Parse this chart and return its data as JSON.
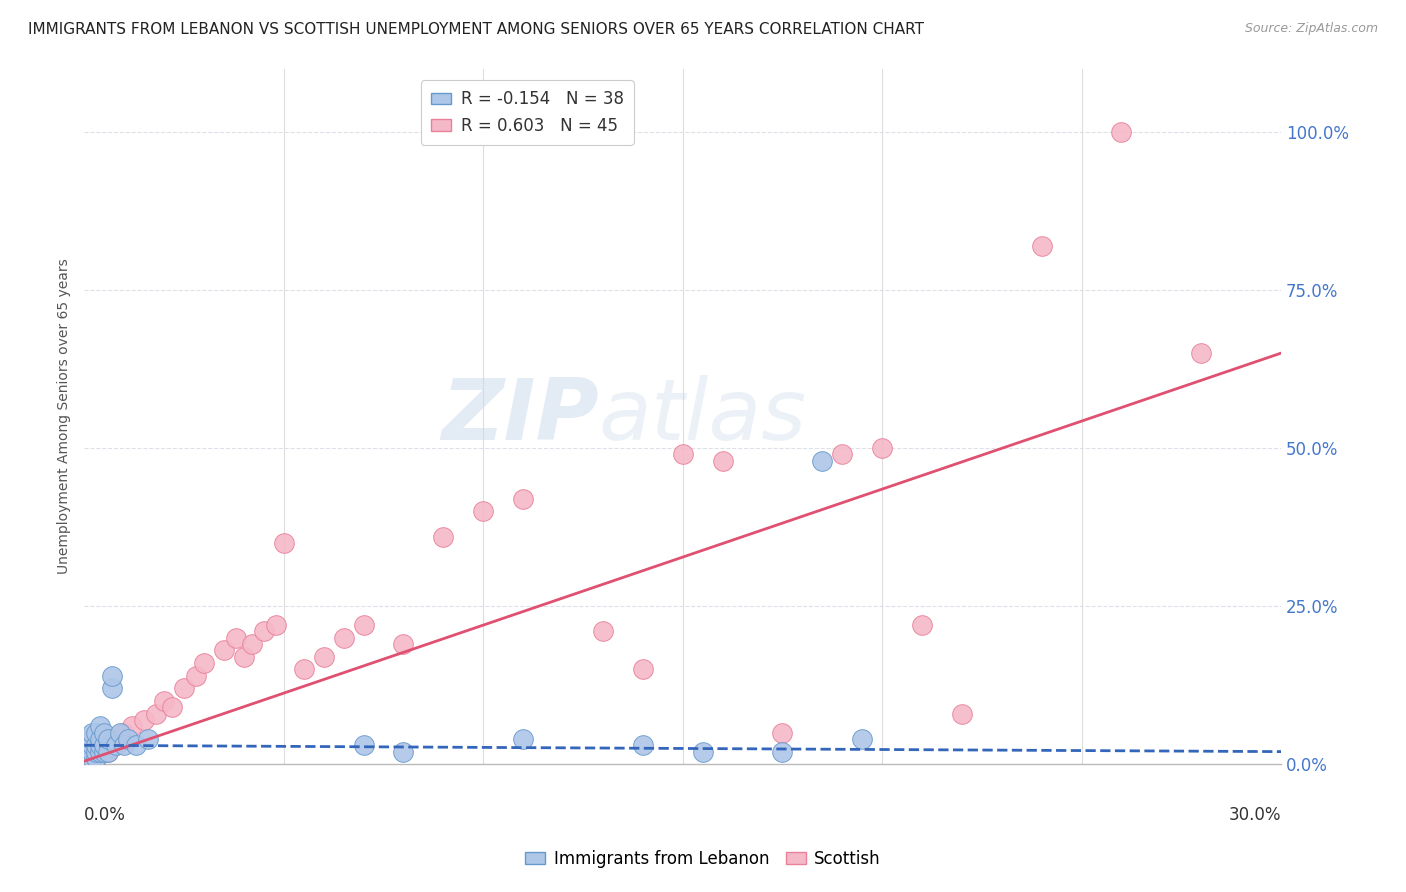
{
  "title": "IMMIGRANTS FROM LEBANON VS SCOTTISH UNEMPLOYMENT AMONG SENIORS OVER 65 YEARS CORRELATION CHART",
  "source": "Source: ZipAtlas.com",
  "ylabel": "Unemployment Among Seniors over 65 years",
  "ytick_values": [
    0.0,
    0.25,
    0.5,
    0.75,
    1.0
  ],
  "ytick_labels_right": [
    "0.0%",
    "25.0%",
    "50.0%",
    "75.0%",
    "100.0%"
  ],
  "xmin": 0.0,
  "xmax": 0.3,
  "ymin": 0.0,
  "ymax": 1.1,
  "legend_blue_R": "-0.154",
  "legend_blue_N": "38",
  "legend_pink_R": "0.603",
  "legend_pink_N": "45",
  "blue_scatter_color": "#aec6e8",
  "blue_edge_color": "#6699cc",
  "blue_line_color": "#3366bb",
  "pink_scatter_color": "#f5b8c8",
  "pink_edge_color": "#e8809a",
  "pink_line_color": "#e05070",
  "blue_x": [
    0.001,
    0.001,
    0.001,
    0.001,
    0.002,
    0.002,
    0.002,
    0.002,
    0.002,
    0.003,
    0.003,
    0.003,
    0.003,
    0.004,
    0.004,
    0.004,
    0.004,
    0.005,
    0.005,
    0.005,
    0.006,
    0.006,
    0.007,
    0.007,
    0.008,
    0.009,
    0.01,
    0.011,
    0.013,
    0.016,
    0.07,
    0.08,
    0.11,
    0.14,
    0.155,
    0.175,
    0.185,
    0.195
  ],
  "blue_y": [
    0.01,
    0.02,
    0.03,
    0.04,
    0.01,
    0.02,
    0.03,
    0.04,
    0.05,
    0.01,
    0.02,
    0.03,
    0.05,
    0.02,
    0.03,
    0.04,
    0.06,
    0.02,
    0.03,
    0.05,
    0.02,
    0.04,
    0.12,
    0.14,
    0.03,
    0.05,
    0.03,
    0.04,
    0.03,
    0.04,
    0.03,
    0.02,
    0.04,
    0.03,
    0.02,
    0.02,
    0.48,
    0.04
  ],
  "pink_x": [
    0.001,
    0.002,
    0.003,
    0.004,
    0.005,
    0.006,
    0.007,
    0.008,
    0.009,
    0.01,
    0.012,
    0.015,
    0.018,
    0.02,
    0.022,
    0.025,
    0.028,
    0.03,
    0.035,
    0.038,
    0.04,
    0.042,
    0.045,
    0.048,
    0.05,
    0.055,
    0.06,
    0.065,
    0.07,
    0.08,
    0.09,
    0.1,
    0.11,
    0.13,
    0.14,
    0.15,
    0.16,
    0.175,
    0.19,
    0.2,
    0.21,
    0.22,
    0.24,
    0.26,
    0.28
  ],
  "pink_y": [
    0.01,
    0.02,
    0.01,
    0.03,
    0.02,
    0.02,
    0.03,
    0.03,
    0.04,
    0.05,
    0.06,
    0.07,
    0.08,
    0.1,
    0.09,
    0.12,
    0.14,
    0.16,
    0.18,
    0.2,
    0.17,
    0.19,
    0.21,
    0.22,
    0.35,
    0.15,
    0.17,
    0.2,
    0.22,
    0.19,
    0.36,
    0.4,
    0.42,
    0.21,
    0.15,
    0.49,
    0.48,
    0.05,
    0.49,
    0.5,
    0.22,
    0.08,
    0.82,
    1.0,
    0.65
  ],
  "watermark_zip": "ZIP",
  "watermark_atlas": "atlas",
  "background_color": "#ffffff",
  "grid_color": "#dde0e8",
  "title_fontsize": 11,
  "axis_label_fontsize": 10,
  "right_label_color": "#4477cc"
}
